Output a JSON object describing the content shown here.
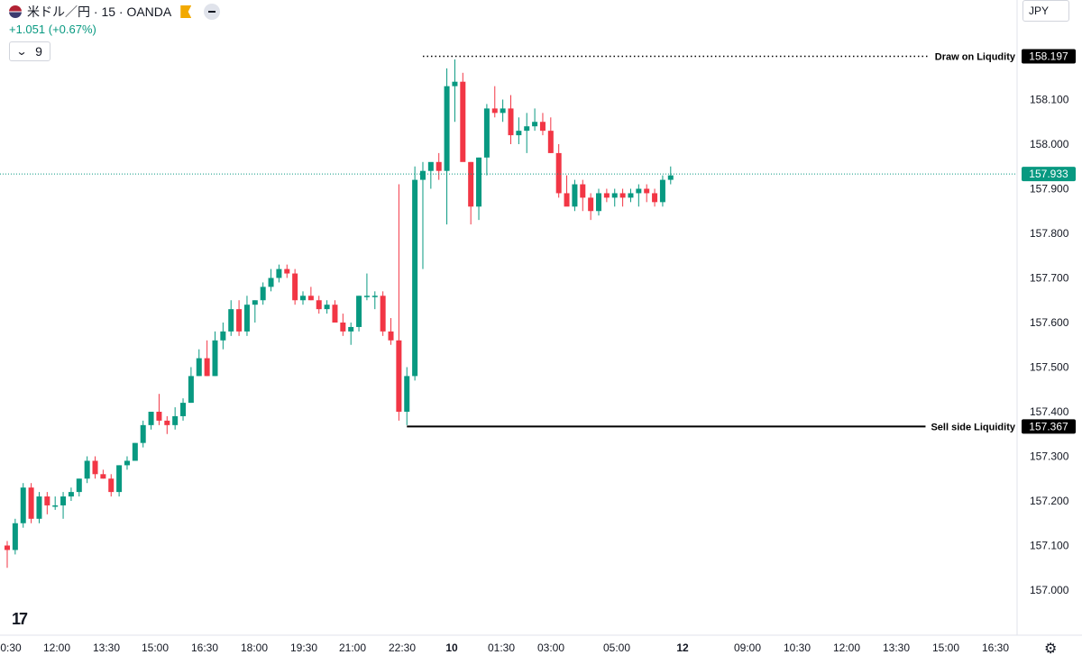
{
  "header": {
    "symbol": "米ドル／円 · 15 · OANDA",
    "change": "+1.051 (+0.67%)",
    "indicator_count": "9",
    "currency": "JPY"
  },
  "icons": [
    "us-flag-icon",
    "flag-icon",
    "minus-icon",
    "chevron-down-icon",
    "tradingview-logo",
    "gear-icon"
  ],
  "colors": {
    "up": "#089981",
    "down": "#f23645",
    "price_line": "#089981",
    "annotation": "#000000"
  },
  "chart_data": {
    "type": "candlestick",
    "interval": "15",
    "ylim": [
      156.95,
      158.26
    ],
    "y_ticks": [
      "157.000",
      "157.100",
      "157.200",
      "157.300",
      "157.400",
      "157.500",
      "157.600",
      "157.700",
      "157.800",
      "157.900",
      "158.000",
      "158.100"
    ],
    "x_ticks": [
      "0:30",
      "12:00",
      "13:30",
      "15:00",
      "16:30",
      "18:00",
      "19:30",
      "21:00",
      "22:30",
      "10",
      "01:30",
      "03:00",
      "05:00",
      "12",
      "09:00",
      "10:30",
      "12:00",
      "13:30",
      "15:00",
      "16:30"
    ],
    "x_tick_bold": [
      "10",
      "12"
    ],
    "candles": [
      [
        157.1,
        157.11,
        157.05,
        157.09
      ],
      [
        157.09,
        157.16,
        157.08,
        157.15
      ],
      [
        157.15,
        157.24,
        157.14,
        157.23
      ],
      [
        157.23,
        157.24,
        157.15,
        157.16
      ],
      [
        157.16,
        157.22,
        157.15,
        157.21
      ],
      [
        157.21,
        157.22,
        157.17,
        157.19
      ],
      [
        157.19,
        157.21,
        157.18,
        157.19
      ],
      [
        157.19,
        157.22,
        157.16,
        157.21
      ],
      [
        157.21,
        157.23,
        157.2,
        157.22
      ],
      [
        157.22,
        157.25,
        157.21,
        157.25
      ],
      [
        157.25,
        157.3,
        157.24,
        157.29
      ],
      [
        157.29,
        157.3,
        157.25,
        157.26
      ],
      [
        157.26,
        157.27,
        157.25,
        157.25
      ],
      [
        157.25,
        157.26,
        157.21,
        157.22
      ],
      [
        157.22,
        157.28,
        157.21,
        157.28
      ],
      [
        157.28,
        157.3,
        157.27,
        157.29
      ],
      [
        157.29,
        157.33,
        157.29,
        157.33
      ],
      [
        157.33,
        157.38,
        157.32,
        157.37
      ],
      [
        157.37,
        157.4,
        157.36,
        157.4
      ],
      [
        157.4,
        157.44,
        157.37,
        157.38
      ],
      [
        157.38,
        157.39,
        157.35,
        157.37
      ],
      [
        157.37,
        157.41,
        157.36,
        157.39
      ],
      [
        157.39,
        157.43,
        157.38,
        157.42
      ],
      [
        157.42,
        157.5,
        157.42,
        157.48
      ],
      [
        157.48,
        157.54,
        157.48,
        157.52
      ],
      [
        157.52,
        157.56,
        157.48,
        157.48
      ],
      [
        157.48,
        157.58,
        157.48,
        157.56
      ],
      [
        157.56,
        157.6,
        157.54,
        157.58
      ],
      [
        157.58,
        157.65,
        157.57,
        157.63
      ],
      [
        157.63,
        157.65,
        157.57,
        157.58
      ],
      [
        157.58,
        157.66,
        157.57,
        157.64
      ],
      [
        157.64,
        157.65,
        157.6,
        157.65
      ],
      [
        157.65,
        157.69,
        157.64,
        157.68
      ],
      [
        157.68,
        157.72,
        157.67,
        157.7
      ],
      [
        157.7,
        157.73,
        157.69,
        157.72
      ],
      [
        157.72,
        157.73,
        157.7,
        157.71
      ],
      [
        157.71,
        157.72,
        157.64,
        157.65
      ],
      [
        157.65,
        157.67,
        157.64,
        157.66
      ],
      [
        157.66,
        157.68,
        157.65,
        157.65
      ],
      [
        157.65,
        157.66,
        157.62,
        157.63
      ],
      [
        157.63,
        157.65,
        157.62,
        157.64
      ],
      [
        157.64,
        157.65,
        157.6,
        157.6
      ],
      [
        157.6,
        157.62,
        157.57,
        157.58
      ],
      [
        157.58,
        157.6,
        157.55,
        157.59
      ],
      [
        157.59,
        157.66,
        157.58,
        157.66
      ],
      [
        157.66,
        157.71,
        157.65,
        157.66
      ],
      [
        157.66,
        157.67,
        157.63,
        157.66
      ],
      [
        157.66,
        157.67,
        157.57,
        157.58
      ],
      [
        157.58,
        157.61,
        157.55,
        157.56
      ],
      [
        157.56,
        157.91,
        157.38,
        157.4
      ],
      [
        157.4,
        157.5,
        157.37,
        157.48
      ],
      [
        157.48,
        157.95,
        157.47,
        157.92
      ],
      [
        157.92,
        157.96,
        157.72,
        157.94
      ],
      [
        157.94,
        157.95,
        157.9,
        157.96
      ],
      [
        157.96,
        157.98,
        157.92,
        157.94
      ],
      [
        157.94,
        158.17,
        157.82,
        158.13
      ],
      [
        158.13,
        158.19,
        158.05,
        158.14
      ],
      [
        158.14,
        158.16,
        157.97,
        157.96
      ],
      [
        157.96,
        157.96,
        157.82,
        157.86
      ],
      [
        157.86,
        157.97,
        157.83,
        157.97
      ],
      [
        157.97,
        158.09,
        157.93,
        158.08
      ],
      [
        158.08,
        158.13,
        158.06,
        158.07
      ],
      [
        158.07,
        158.1,
        158.05,
        158.08
      ],
      [
        158.08,
        158.11,
        158.0,
        158.02
      ],
      [
        158.02,
        158.06,
        158.0,
        158.03
      ],
      [
        158.03,
        158.07,
        157.98,
        158.04
      ],
      [
        158.04,
        158.08,
        158.03,
        158.05
      ],
      [
        158.05,
        158.07,
        158.02,
        158.03
      ],
      [
        158.03,
        158.06,
        157.98,
        157.98
      ],
      [
        157.98,
        158.0,
        157.88,
        157.89
      ],
      [
        157.89,
        157.93,
        157.87,
        157.86
      ],
      [
        157.86,
        157.92,
        157.85,
        157.91
      ],
      [
        157.91,
        157.92,
        157.85,
        157.88
      ],
      [
        157.88,
        157.89,
        157.83,
        157.85
      ],
      [
        157.85,
        157.9,
        157.84,
        157.89
      ],
      [
        157.89,
        157.9,
        157.87,
        157.88
      ],
      [
        157.88,
        157.9,
        157.86,
        157.89
      ],
      [
        157.89,
        157.9,
        157.86,
        157.88
      ],
      [
        157.88,
        157.9,
        157.87,
        157.89
      ],
      [
        157.89,
        157.91,
        157.86,
        157.9
      ],
      [
        157.9,
        157.91,
        157.87,
        157.89
      ],
      [
        157.89,
        157.9,
        157.86,
        157.87
      ],
      [
        157.87,
        157.93,
        157.86,
        157.92
      ],
      [
        157.92,
        157.95,
        157.91,
        157.93
      ]
    ],
    "current_price": {
      "value": 157.933,
      "label": "157.933"
    },
    "annotations": [
      {
        "name": "draw-on-liquidity",
        "text": "Draw on Liqudity",
        "value": 158.197,
        "label": "158.197",
        "style": "dotted",
        "from_candle": 52
      },
      {
        "name": "sell-side-liquidity",
        "text": "Sell side Liquidity",
        "value": 157.367,
        "label": "157.367",
        "style": "solid",
        "from_candle": 50
      }
    ]
  }
}
